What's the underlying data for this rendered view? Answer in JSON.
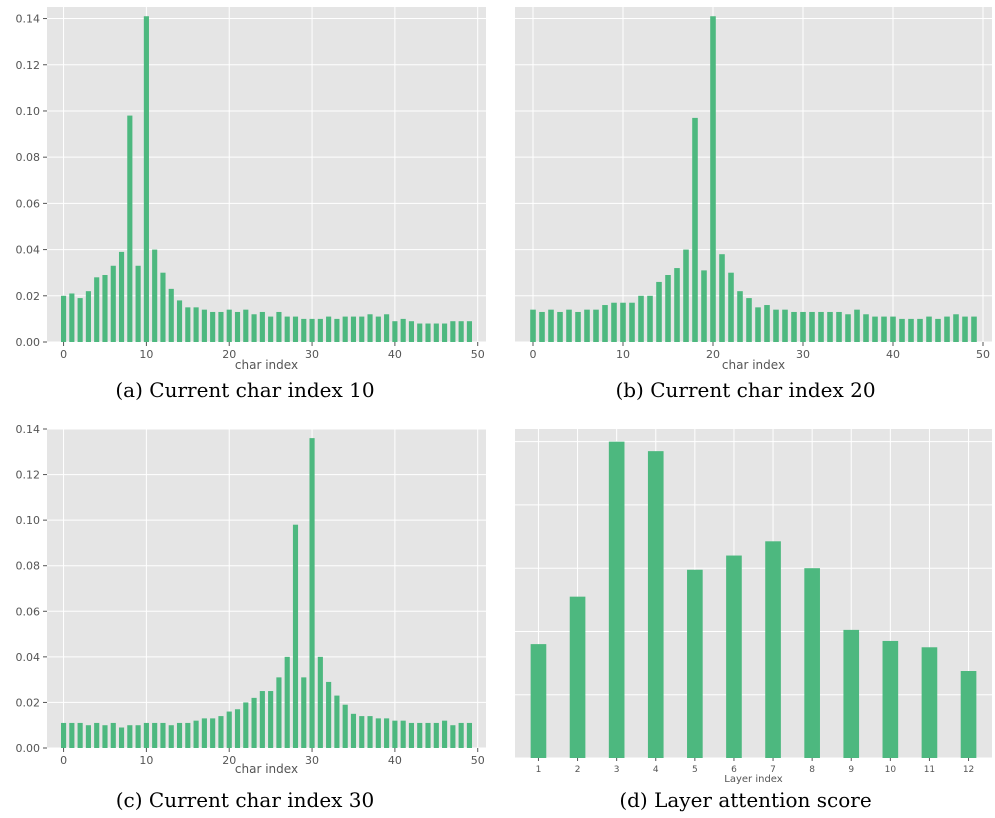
{
  "colors": {
    "bar": "#4db87f",
    "plot_bg": "#e5e5e5",
    "grid": "#ffffff",
    "tick_text": "#555555",
    "label_text": "#555555"
  },
  "chart_data": [
    {
      "id": "a",
      "type": "bar",
      "caption": "(a) Current char index 10",
      "xlabel": "char index",
      "ylabel": "",
      "x": [
        0,
        1,
        2,
        3,
        4,
        5,
        6,
        7,
        8,
        9,
        10,
        11,
        12,
        13,
        14,
        15,
        16,
        17,
        18,
        19,
        20,
        21,
        22,
        23,
        24,
        25,
        26,
        27,
        28,
        29,
        30,
        31,
        32,
        33,
        34,
        35,
        36,
        37,
        38,
        39,
        40,
        41,
        42,
        43,
        44,
        45,
        46,
        47,
        48,
        49
      ],
      "values": [
        0.02,
        0.021,
        0.019,
        0.022,
        0.028,
        0.029,
        0.033,
        0.039,
        0.098,
        0.033,
        0.141,
        0.04,
        0.03,
        0.023,
        0.018,
        0.015,
        0.015,
        0.014,
        0.013,
        0.013,
        0.014,
        0.013,
        0.014,
        0.012,
        0.013,
        0.011,
        0.013,
        0.011,
        0.011,
        0.01,
        0.01,
        0.01,
        0.011,
        0.01,
        0.011,
        0.011,
        0.011,
        0.012,
        0.011,
        0.012,
        0.009,
        0.01,
        0.009,
        0.008,
        0.008,
        0.008,
        0.008,
        0.009,
        0.009,
        0.009
      ],
      "xlim": [
        -2,
        51
      ],
      "ylim": [
        0,
        0.145
      ],
      "xticks": [
        0,
        10,
        20,
        30,
        40,
        50
      ],
      "yticks": [
        0,
        0.02,
        0.04,
        0.06,
        0.08,
        0.1,
        0.12,
        0.14
      ],
      "ytick_labels": [
        "0.00",
        "0.02",
        "0.04",
        "0.06",
        "0.08",
        "0.10",
        "0.12",
        "0.14"
      ],
      "grid": true
    },
    {
      "id": "b",
      "type": "bar",
      "caption": "(b) Current char index 20",
      "xlabel": "char index",
      "ylabel": "",
      "x": [
        0,
        1,
        2,
        3,
        4,
        5,
        6,
        7,
        8,
        9,
        10,
        11,
        12,
        13,
        14,
        15,
        16,
        17,
        18,
        19,
        20,
        21,
        22,
        23,
        24,
        25,
        26,
        27,
        28,
        29,
        30,
        31,
        32,
        33,
        34,
        35,
        36,
        37,
        38,
        39,
        40,
        41,
        42,
        43,
        44,
        45,
        46,
        47,
        48,
        49
      ],
      "values": [
        0.014,
        0.013,
        0.014,
        0.013,
        0.014,
        0.013,
        0.014,
        0.014,
        0.016,
        0.017,
        0.017,
        0.017,
        0.02,
        0.02,
        0.026,
        0.029,
        0.032,
        0.04,
        0.097,
        0.031,
        0.141,
        0.038,
        0.03,
        0.022,
        0.019,
        0.015,
        0.016,
        0.014,
        0.014,
        0.013,
        0.013,
        0.013,
        0.013,
        0.013,
        0.013,
        0.012,
        0.014,
        0.012,
        0.011,
        0.011,
        0.011,
        0.01,
        0.01,
        0.01,
        0.011,
        0.01,
        0.011,
        0.012,
        0.011,
        0.011
      ],
      "xlim": [
        -2,
        51
      ],
      "ylim": [
        0,
        0.145
      ],
      "xticks": [
        0,
        10,
        20,
        30,
        40,
        50
      ],
      "yticks": [
        0,
        0.02,
        0.04,
        0.06,
        0.08,
        0.1,
        0.12,
        0.14
      ],
      "grid": true
    },
    {
      "id": "c",
      "type": "bar",
      "caption": "(c) Current char index 30",
      "xlabel": "char index",
      "ylabel": "",
      "x": [
        0,
        1,
        2,
        3,
        4,
        5,
        6,
        7,
        8,
        9,
        10,
        11,
        12,
        13,
        14,
        15,
        16,
        17,
        18,
        19,
        20,
        21,
        22,
        23,
        24,
        25,
        26,
        27,
        28,
        29,
        30,
        31,
        32,
        33,
        34,
        35,
        36,
        37,
        38,
        39,
        40,
        41,
        42,
        43,
        44,
        45,
        46,
        47,
        48,
        49
      ],
      "values": [
        0.011,
        0.011,
        0.011,
        0.01,
        0.011,
        0.01,
        0.011,
        0.009,
        0.01,
        0.01,
        0.011,
        0.011,
        0.011,
        0.01,
        0.011,
        0.011,
        0.012,
        0.013,
        0.013,
        0.014,
        0.016,
        0.017,
        0.02,
        0.022,
        0.025,
        0.025,
        0.031,
        0.04,
        0.098,
        0.031,
        0.136,
        0.04,
        0.029,
        0.023,
        0.019,
        0.015,
        0.014,
        0.014,
        0.013,
        0.013,
        0.012,
        0.012,
        0.011,
        0.011,
        0.011,
        0.011,
        0.012,
        0.01,
        0.011,
        0.011
      ],
      "xlim": [
        -2,
        51
      ],
      "ylim": [
        0,
        0.14
      ],
      "xticks": [
        0,
        10,
        20,
        30,
        40,
        50
      ],
      "yticks": [
        0,
        0.02,
        0.04,
        0.06,
        0.08,
        0.1,
        0.12,
        0.14
      ],
      "ytick_labels": [
        "0.00",
        "0.02",
        "0.04",
        "0.06",
        "0.08",
        "0.10",
        "0.12",
        "0.14"
      ],
      "grid": true
    },
    {
      "id": "d",
      "type": "bar",
      "caption": "(d) Layer attention score",
      "xlabel": "Layer index",
      "ylabel": "",
      "categories": [
        "1",
        "2",
        "3",
        "4",
        "5",
        "6",
        "7",
        "8",
        "9",
        "10",
        "11",
        "12"
      ],
      "values": [
        0.36,
        0.51,
        1.0,
        0.97,
        0.595,
        0.64,
        0.685,
        0.6,
        0.405,
        0.37,
        0.35,
        0.275
      ],
      "ylim": [
        0,
        1.04
      ],
      "grid": true
    }
  ]
}
